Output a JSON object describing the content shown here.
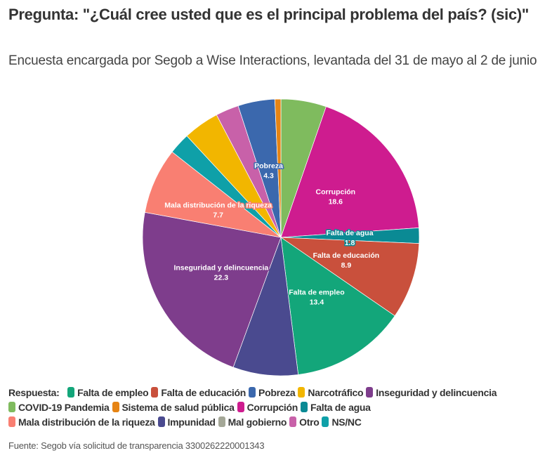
{
  "chart_data": {
    "type": "pie",
    "title": "Pregunta: \"¿Cuál cree usted que es el principal problema del país? (sic)\"",
    "subtitle": "Encuesta encargada por Segob a Wise Interactions, levantada del 31 de mayo al 2 de junio",
    "source": "Fuente: Segob vía solicitud de transparencia 3300262220001343",
    "legend_title": "Respuesta:",
    "legend_placement": "bottom",
    "slices": [
      {
        "name": "COVID-19 Pandemia",
        "value": 5.3,
        "color": "#7fbb5e",
        "labeled": false
      },
      {
        "name": "Corrupción",
        "value": 18.6,
        "color": "#ce1c8f",
        "labeled": true
      },
      {
        "name": "Falta de agua",
        "value": 1.8,
        "color": "#0a8a94",
        "labeled": true
      },
      {
        "name": "Falta de educación",
        "value": 8.9,
        "color": "#c9503c",
        "labeled": true
      },
      {
        "name": "Falta de empleo",
        "value": 13.4,
        "color": "#13a67a",
        "labeled": true
      },
      {
        "name": "Impunidad",
        "value": 7.6,
        "color": "#4a4a8f",
        "labeled": false
      },
      {
        "name": "Inseguridad y delincuencia",
        "value": 22.3,
        "color": "#7e3d8c",
        "labeled": true
      },
      {
        "name": "Mal gobierno",
        "value": 0,
        "color": "#a4a797",
        "labeled": false
      },
      {
        "name": "Mala distribución de la riqueza",
        "value": 7.7,
        "color": "#f97f72",
        "labeled": true
      },
      {
        "name": "NS/NC",
        "value": 2.5,
        "color": "#0fa0a8",
        "labeled": false
      },
      {
        "name": "Narcotráfico",
        "value": 4.2,
        "color": "#f2b600",
        "labeled": false
      },
      {
        "name": "Otro",
        "value": 2.7,
        "color": "#c861a9",
        "labeled": false
      },
      {
        "name": "Pobreza",
        "value": 4.3,
        "color": "#3b68ad",
        "labeled": true
      },
      {
        "name": "Sistema de salud pública",
        "value": 0.7,
        "color": "#e68414",
        "labeled": false
      }
    ],
    "legend_order": [
      "Falta de empleo",
      "Falta de educación",
      "Pobreza",
      "Narcotráfico",
      "Inseguridad y delincuencia",
      "COVID-19 Pandemia",
      "Sistema de salud pública",
      "Corrupción",
      "Falta de agua",
      "Mala distribución de la riqueza",
      "Impunidad",
      "Mal gobierno",
      "Otro",
      "NS/NC"
    ]
  }
}
